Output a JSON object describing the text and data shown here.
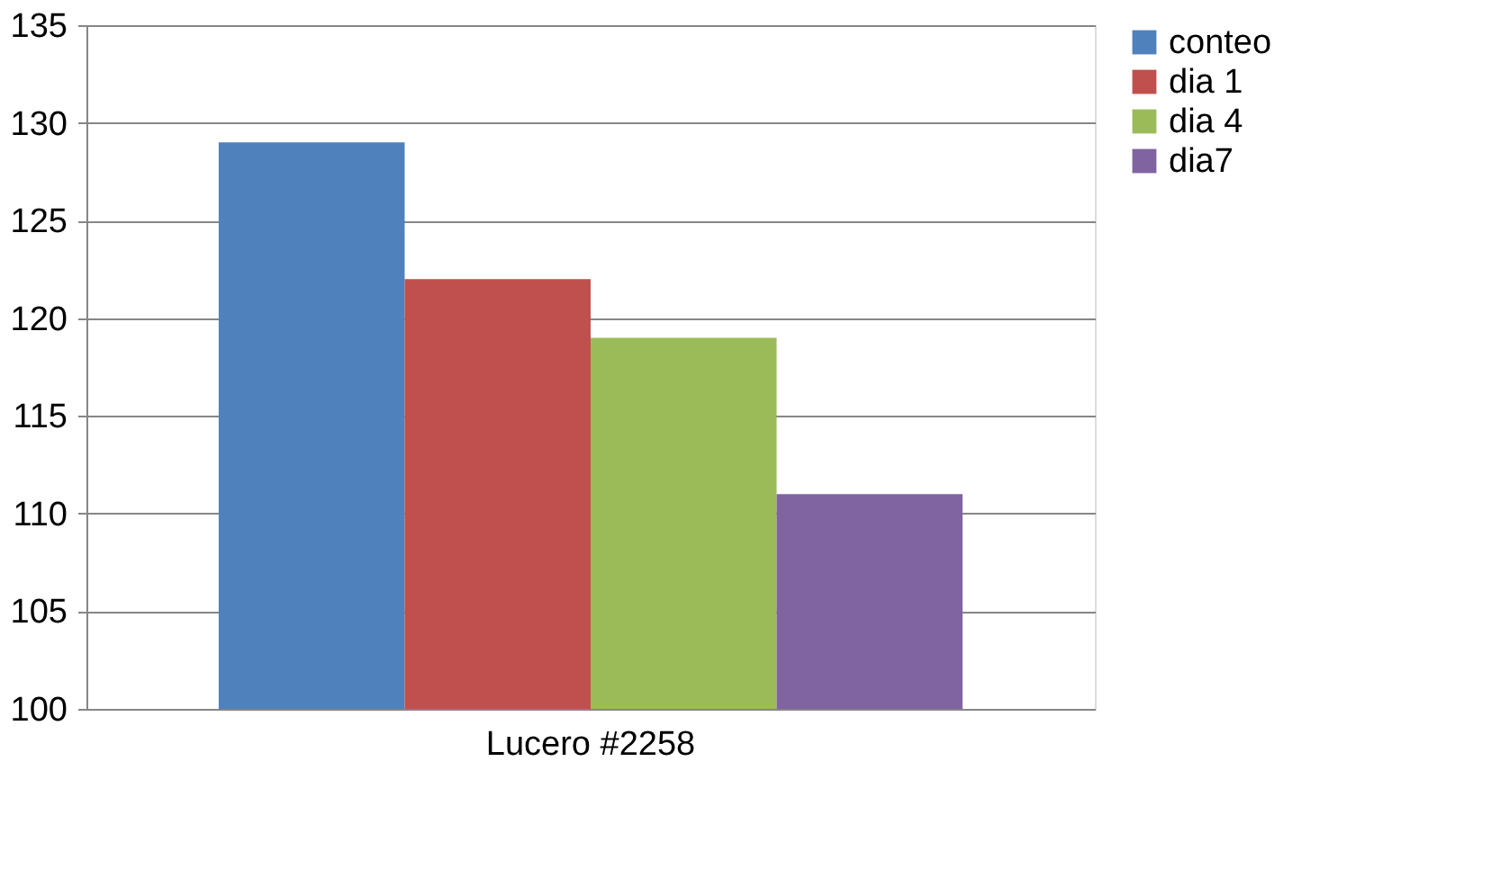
{
  "chart_data": {
    "type": "bar",
    "categories": [
      "Lucero #2258"
    ],
    "series": [
      {
        "name": "conteo",
        "color": "#4f81bd",
        "values": [
          129
        ]
      },
      {
        "name": "dia 1",
        "color": "#c0504d",
        "values": [
          122
        ]
      },
      {
        "name": "dia 4",
        "color": "#9bbb59",
        "values": [
          119
        ]
      },
      {
        "name": "dia7",
        "color": "#8064a2",
        "values": [
          111
        ]
      }
    ],
    "ylim": [
      100,
      135
    ],
    "yticks": [
      100,
      105,
      110,
      115,
      120,
      125,
      130,
      135
    ],
    "grid": "y",
    "legend": "right"
  }
}
